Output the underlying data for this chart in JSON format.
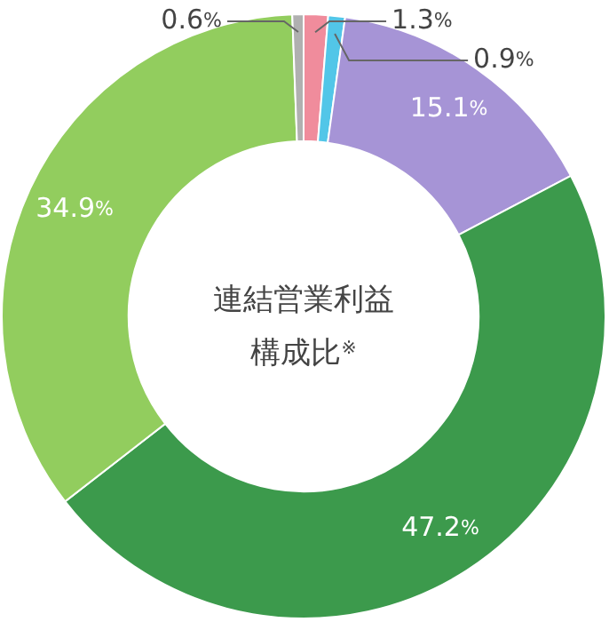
{
  "chart_data": {
    "type": "donut",
    "title": "連結営業利益構成比$^{※}$",
    "categories": [
      null,
      null,
      null,
      null,
      null,
      null
    ],
    "values": [
      1.3,
      0.9,
      15.1,
      47.2,
      34.9,
      0.6
    ],
    "colors": [
      "#f08c9c",
      "#52c6e8",
      "#a694d6",
      "#3c9a4c",
      "#92cd5e",
      "#b0b0b0"
    ],
    "value_labels": [
      "1.3%",
      "0.9%",
      "15.1%",
      "47.2%",
      "34.9%",
      "0.6%"
    ]
  }
}
